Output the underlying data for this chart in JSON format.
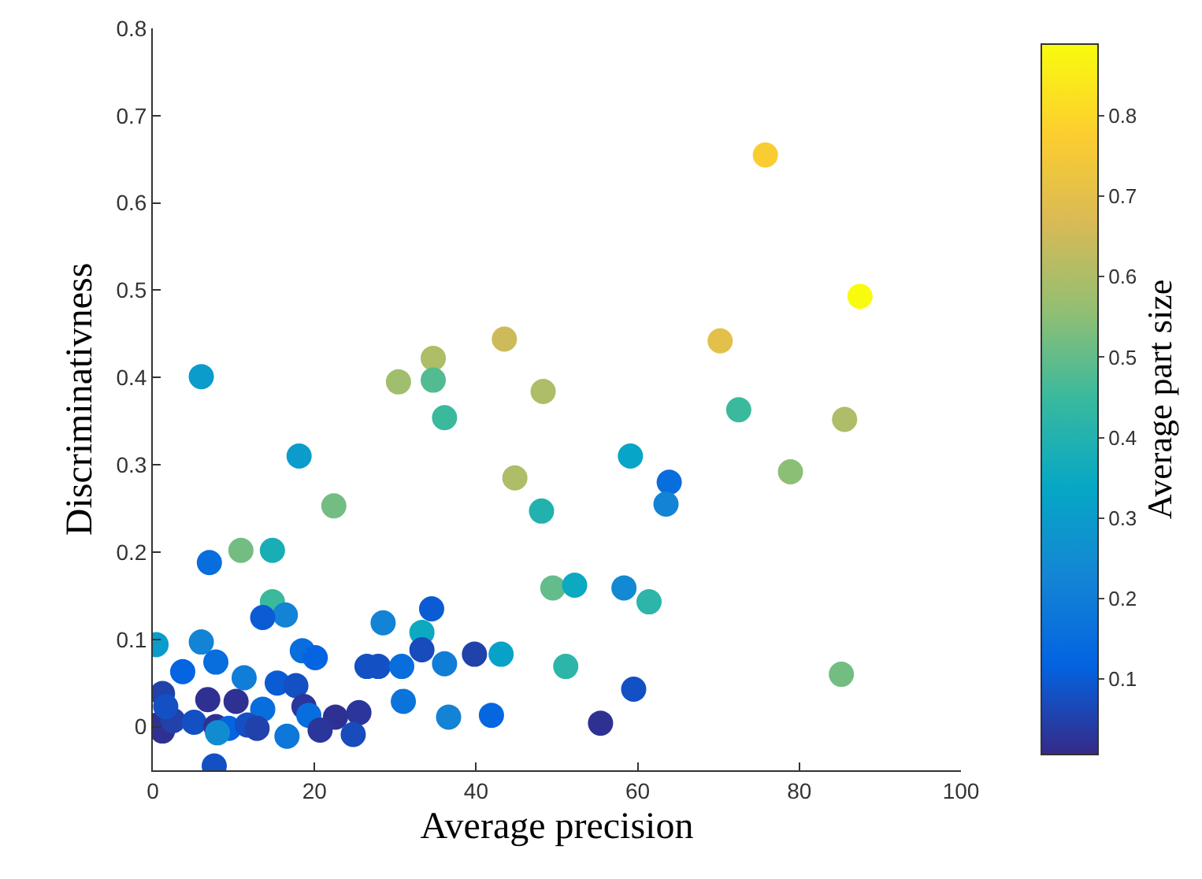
{
  "chart_data": {
    "type": "scatter",
    "xlabel": "Average precision",
    "ylabel": "Discriminativness",
    "clabel": "Average part size",
    "x": [
      75.8,
      87.5,
      70.2,
      72.5,
      85.6,
      43.5,
      34.7,
      30.4,
      34.7,
      48.3,
      36.1,
      59.1,
      78.9,
      44.8,
      63.9,
      63.5,
      48.1,
      49.5,
      52.2,
      58.3,
      61.4,
      28.5,
      34.5,
      33.3,
      33.3,
      39.8,
      43.1,
      27.9,
      30.8,
      36.1,
      51.1,
      85.2,
      31.0,
      59.5,
      36.6,
      41.9,
      55.4,
      6.0,
      18.1,
      22.4,
      10.9,
      14.8,
      7.0,
      14.8,
      16.4,
      13.6,
      0.4,
      6.0,
      18.5,
      20.1,
      26.5,
      3.7,
      7.8,
      11.3,
      15.4,
      17.7,
      1.2,
      6.8,
      10.3,
      18.7,
      13.6,
      25.5,
      22.6,
      19.3,
      0.6,
      1.2,
      2.5,
      5.1,
      7.8,
      9.4,
      11.7,
      12.9,
      16.6,
      20.7,
      24.8,
      7.6,
      8.0,
      1.6
    ],
    "values": [
      0.655,
      0.493,
      0.442,
      0.363,
      0.352,
      0.444,
      0.422,
      0.395,
      0.397,
      0.384,
      0.354,
      0.31,
      0.292,
      0.285,
      0.28,
      0.255,
      0.247,
      0.159,
      0.162,
      0.159,
      0.143,
      0.119,
      0.135,
      0.108,
      0.088,
      0.083,
      0.083,
      0.069,
      0.069,
      0.072,
      0.069,
      0.06,
      0.029,
      0.043,
      0.011,
      0.013,
      0.004,
      0.401,
      0.31,
      0.253,
      0.202,
      0.202,
      0.188,
      0.143,
      0.128,
      0.125,
      0.094,
      0.097,
      0.087,
      0.079,
      0.069,
      0.063,
      0.074,
      0.056,
      0.05,
      0.047,
      0.038,
      0.031,
      0.029,
      0.023,
      0.02,
      0.016,
      0.011,
      0.013,
      0.002,
      -0.005,
      0.007,
      0.005,
      0.0,
      -0.002,
      0.002,
      -0.002,
      -0.011,
      -0.004,
      -0.009,
      -0.045,
      -0.007,
      0.023
    ],
    "cvalues": [
      0.77,
      0.889,
      0.7,
      0.45,
      0.6,
      0.65,
      0.6,
      0.58,
      0.48,
      0.6,
      0.45,
      0.33,
      0.55,
      0.6,
      0.15,
      0.22,
      0.4,
      0.5,
      0.35,
      0.24,
      0.42,
      0.22,
      0.1,
      0.35,
      0.07,
      0.05,
      0.32,
      0.08,
      0.15,
      0.2,
      0.42,
      0.52,
      0.17,
      0.08,
      0.22,
      0.13,
      0.02,
      0.3,
      0.3,
      0.52,
      0.52,
      0.38,
      0.15,
      0.45,
      0.22,
      0.1,
      0.3,
      0.22,
      0.15,
      0.12,
      0.08,
      0.12,
      0.15,
      0.2,
      0.1,
      0.08,
      0.05,
      0.02,
      0.02,
      0.03,
      0.15,
      0.03,
      0.02,
      0.15,
      0.02,
      0.02,
      0.05,
      0.08,
      0.02,
      0.12,
      0.08,
      0.05,
      0.18,
      0.03,
      0.07,
      0.08,
      0.25,
      0.08
    ],
    "xlim": [
      0,
      100
    ],
    "xticks": [
      0,
      20,
      40,
      60,
      80,
      100
    ],
    "ylim": [
      -0.05,
      0.8
    ],
    "yticks": [
      0,
      0.1,
      0.2,
      0.3,
      0.4,
      0.5,
      0.6,
      0.7,
      0.8
    ],
    "clim": [
      0.006,
      0.889
    ],
    "cticks": [
      0.1,
      0.2,
      0.3,
      0.4,
      0.5,
      0.6,
      0.7,
      0.8
    ],
    "marker": "circle"
  }
}
